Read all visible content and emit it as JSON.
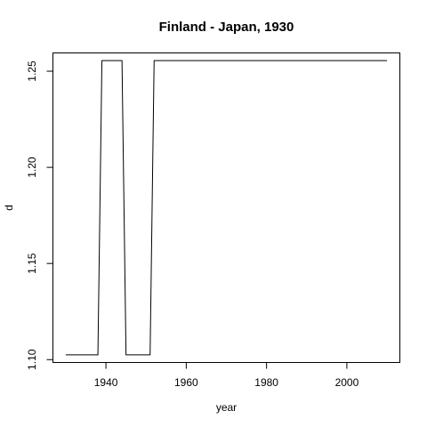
{
  "chart_data": {
    "type": "line",
    "title": "Finland - Japan, 1930",
    "xlabel": "year",
    "ylabel": "d",
    "xlim": [
      1926.8,
      2013.2
    ],
    "ylim": [
      1.0985,
      1.2595
    ],
    "xticks": [
      1940,
      1960,
      1980,
      2000
    ],
    "yticks": [
      1.1,
      1.15,
      1.2,
      1.25
    ],
    "ytick_labels": [
      "1.10",
      "1.15",
      "1.20",
      "1.25"
    ],
    "grid": false,
    "series": [
      {
        "x": [
          1930,
          1938,
          1939,
          1944,
          1945,
          1951,
          1952,
          2010
        ],
        "y": [
          1.1025,
          1.1025,
          1.2555,
          1.2555,
          1.1025,
          1.1025,
          1.2555,
          1.2555
        ]
      }
    ]
  }
}
